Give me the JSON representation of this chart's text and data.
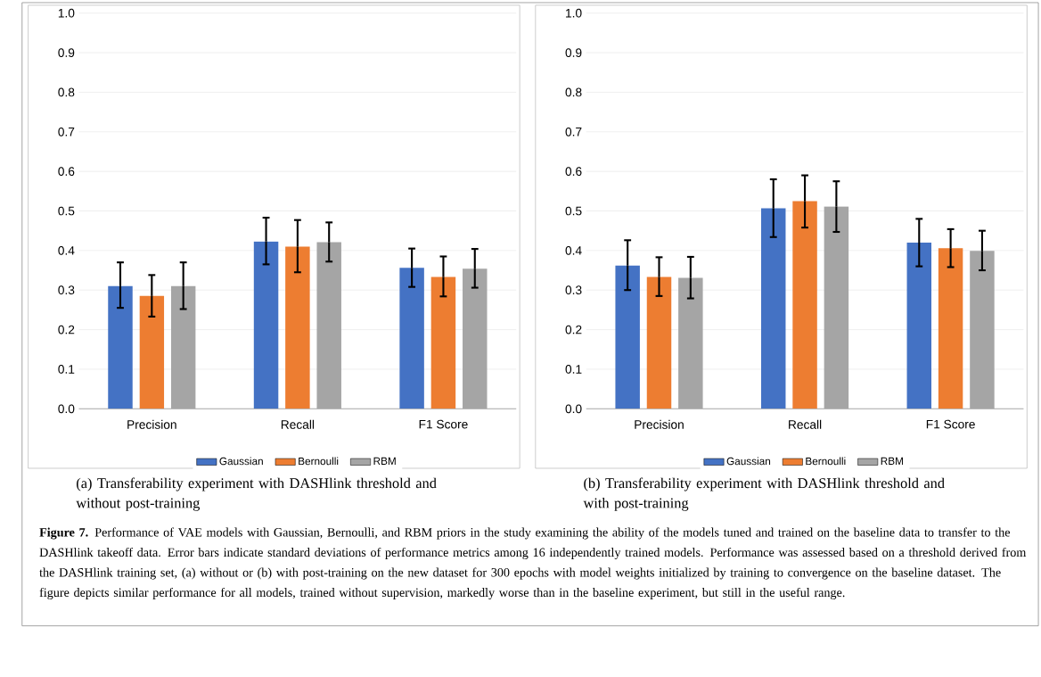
{
  "chart_data": [
    {
      "type": "bar",
      "title": "(a) Transferability experiment with DASHlink threshold and without post-training",
      "categories": [
        "Precision",
        "Recall",
        "F1 Score"
      ],
      "series": [
        {
          "name": "Gaussian",
          "color": "#4472c4",
          "values": [
            0.31,
            0.423,
            0.356
          ],
          "errors": [
            [
              0.255,
              0.37
            ],
            [
              0.365,
              0.483
            ],
            [
              0.308,
              0.405
            ]
          ]
        },
        {
          "name": "Bernoulli",
          "color": "#ed7d31",
          "values": [
            0.285,
            0.41,
            0.333
          ],
          "errors": [
            [
              0.233,
              0.338
            ],
            [
              0.345,
              0.477
            ],
            [
              0.284,
              0.385
            ]
          ]
        },
        {
          "name": "RBM",
          "color": "#a5a5a5",
          "values": [
            0.31,
            0.421,
            0.354
          ],
          "errors": [
            [
              0.252,
              0.37
            ],
            [
              0.372,
              0.471
            ],
            [
              0.306,
              0.404
            ]
          ]
        }
      ],
      "ylim": [
        0,
        1
      ],
      "yticks": [
        {
          "value": 0,
          "label": "0.0"
        },
        {
          "value": 0.1,
          "label": "0.1"
        },
        {
          "value": 0.2,
          "label": "0.2"
        },
        {
          "value": 0.3,
          "label": "0.3"
        },
        {
          "value": 0.4,
          "label": "0.4"
        },
        {
          "value": 0.5,
          "label": "0.5"
        },
        {
          "value": 0.6,
          "label": "0.6"
        },
        {
          "value": 0.7,
          "label": "0.7"
        },
        {
          "value": 0.8,
          "label": "0.8"
        },
        {
          "value": 0.9,
          "label": "0.9"
        },
        {
          "value": 1,
          "label": "1.0"
        }
      ],
      "grid": "y",
      "legend": "bottom",
      "annotations": [
        "**Figure 7.** Performance of VAE models with Gaussian, Bernoulli, and RBM priors in the study examining the ability of the models tuned and trained on the baseline data to transfer to the DASHlink takeoff data. Error bars indicate standard deviations of performance metrics among 16 independently trained models. Performance was assessed based on a threshold derived from the DASHlink training set, (a) without or (b) with post-training on the new dataset for 300 epochs with model weights initialized by training to convergence on the baseline dataset. The figure depicts similar performance for all models, trained without supervision, markedly worse than in the baseline experiment, but still in the useful range."
      ]
    },
    {
      "type": "bar",
      "title": "(b) Transferability experiment with DASHlink threshold and with post-training",
      "categories": [
        "Precision",
        "Recall",
        "F1 Score"
      ],
      "series": [
        {
          "name": "Gaussian",
          "color": "#4472c4",
          "values": [
            0.362,
            0.507,
            0.42
          ],
          "errors": [
            [
              0.3,
              0.426
            ],
            [
              0.434,
              0.58
            ],
            [
              0.36,
              0.48
            ]
          ]
        },
        {
          "name": "Bernoulli",
          "color": "#ed7d31",
          "values": [
            0.333,
            0.525,
            0.406
          ],
          "errors": [
            [
              0.285,
              0.383
            ],
            [
              0.458,
              0.59
            ],
            [
              0.358,
              0.454
            ]
          ]
        },
        {
          "name": "RBM",
          "color": "#a5a5a5",
          "values": [
            0.331,
            0.511,
            0.399
          ],
          "errors": [
            [
              0.279,
              0.384
            ],
            [
              0.447,
              0.575
            ],
            [
              0.35,
              0.45
            ]
          ]
        }
      ],
      "ylim": [
        0,
        1
      ],
      "yticks": [
        {
          "value": 0,
          "label": "0.0"
        },
        {
          "value": 0.1,
          "label": "0.1"
        },
        {
          "value": 0.2,
          "label": "0.2"
        },
        {
          "value": 0.3,
          "label": "0.3"
        },
        {
          "value": 0.4,
          "label": "0.4"
        },
        {
          "value": 0.5,
          "label": "0.5"
        },
        {
          "value": 0.6,
          "label": "0.6"
        },
        {
          "value": 0.7,
          "label": "0.7"
        },
        {
          "value": 0.8,
          "label": "0.8"
        },
        {
          "value": 0.9,
          "label": "0.9"
        },
        {
          "value": 1,
          "label": "1.0"
        }
      ],
      "grid": "y",
      "legend": "bottom"
    }
  ]
}
